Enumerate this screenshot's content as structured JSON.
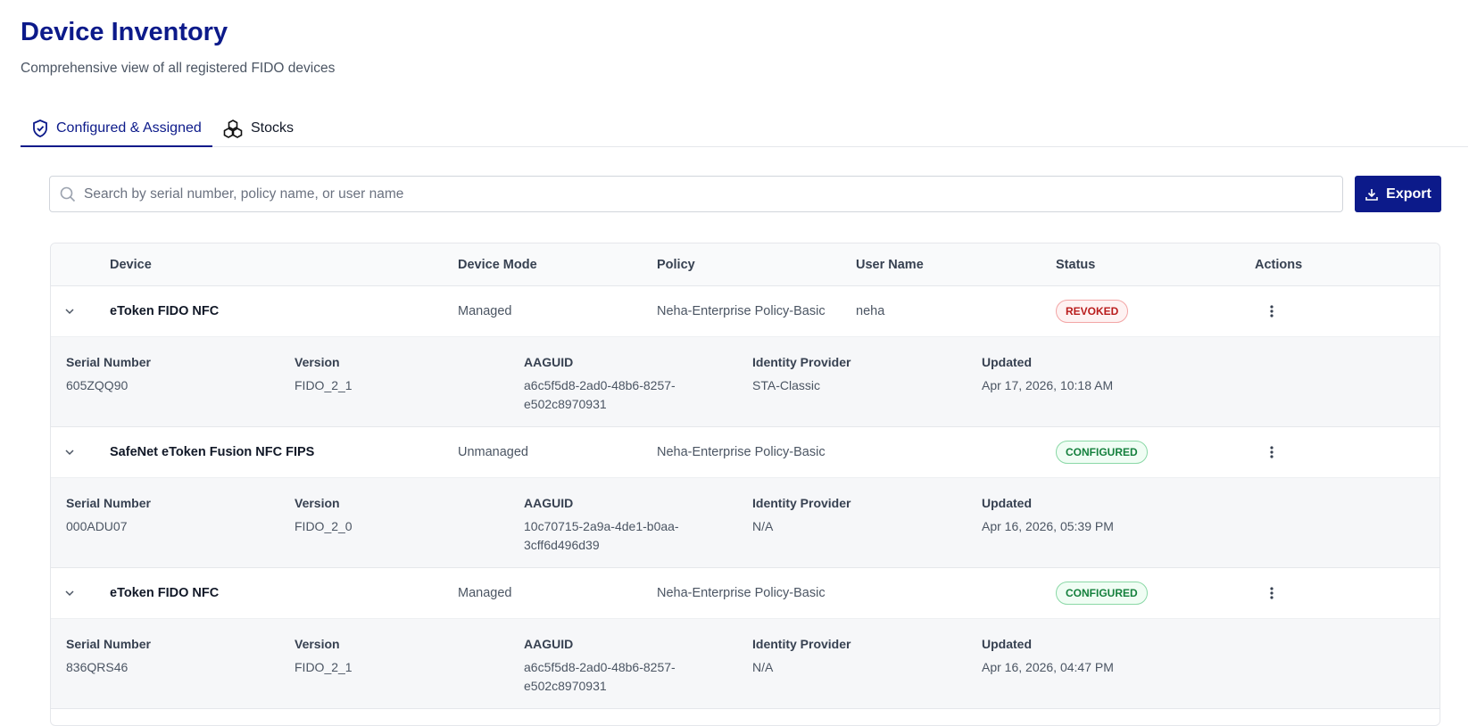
{
  "header": {
    "title": "Device Inventory",
    "subtitle": "Comprehensive view of all registered FIDO devices"
  },
  "tabs": [
    "Configured & Assigned",
    "Stocks"
  ],
  "search": {
    "placeholder": "Search by serial number, policy name, or user name"
  },
  "export": {
    "label": "Export"
  },
  "table": {
    "columns": [
      "Device",
      "Device Mode",
      "Policy",
      "User Name",
      "Status",
      "Actions"
    ],
    "detail_columns": [
      "Serial Number",
      "Version",
      "AAGUID",
      "Identity Provider",
      "Updated"
    ],
    "rows": [
      {
        "device": "eToken FIDO NFC",
        "mode": "Managed",
        "policy": "Neha-Enterprise Policy-Basic",
        "user": "neha",
        "status": "REVOKED",
        "status_color": "#b91c1c",
        "status_bg": "#fef2f2",
        "status_border": "#f3a5a5",
        "details": [
          "605ZQQ90",
          "FIDO_2_1",
          "a6c5f5d8-2ad0-48b6-8257-e502c8970931",
          "STA-Classic",
          "Apr 17, 2026, 10:18 AM"
        ]
      },
      {
        "device": "SafeNet eToken Fusion NFC FIPS",
        "mode": "Unmanaged",
        "policy": "Neha-Enterprise Policy-Basic",
        "status": "CONFIGURED",
        "status_color": "#15803d",
        "status_bg": "#f0fdf4",
        "status_border": "#8ad8a6",
        "details": [
          "000ADU07",
          "FIDO_2_0",
          "10c70715-2a9a-4de1-b0aa-3cff6d496d39",
          "N/A",
          "Apr 16, 2026, 05:39 PM"
        ]
      },
      {
        "device": "eToken FIDO NFC",
        "mode": "Managed",
        "policy": "Neha-Enterprise Policy-Basic",
        "status": "CONFIGURED",
        "status_color": "#15803d",
        "status_bg": "#f0fdf4",
        "status_border": "#8ad8a6",
        "details": [
          "836QRS46",
          "FIDO_2_1",
          "a6c5f5d8-2ad0-48b6-8257-e502c8970931",
          "N/A",
          "Apr 16, 2026, 04:47 PM"
        ]
      }
    ]
  }
}
